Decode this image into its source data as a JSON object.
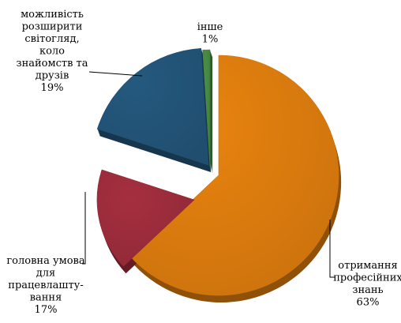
{
  "chart_data": {
    "type": "pie",
    "style": "3d-exploded",
    "slices": [
      {
        "label": "отримання професійних знань",
        "label_lines": [
          "отримання",
          "професійних",
          "знань"
        ],
        "value": 63,
        "value_text": "63%",
        "color": "#e8830f"
      },
      {
        "label": "головна умова для працевлаштування",
        "label_lines": [
          "головна умова",
          "для",
          "працевлашту-",
          "вання"
        ],
        "value": 17,
        "value_text": "17%",
        "color": "#a52f3f"
      },
      {
        "label": "можливість розширити світогляд, коло знайомств та друзів",
        "label_lines": [
          "можливість",
          "розширити",
          "світогляд,",
          "коло",
          "знайомств та",
          "друзів"
        ],
        "value": 19,
        "value_text": "19%",
        "color": "#24597e"
      },
      {
        "label": "інше",
        "label_lines": [
          "інше"
        ],
        "value": 1,
        "value_text": "1%",
        "color": "#4a9046"
      }
    ]
  }
}
